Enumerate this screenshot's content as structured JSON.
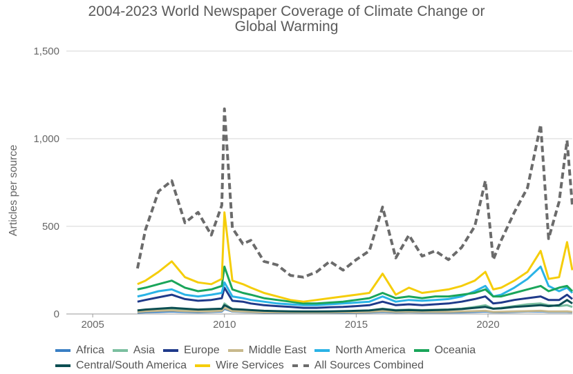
{
  "chart_data": {
    "type": "line",
    "title_lines": [
      "2004-2023 World Newspaper Coverage of Climate Change or",
      "Global Warming"
    ],
    "xlabel": "",
    "ylabel": "Articles per source",
    "xlim": [
      2004,
      2023.2
    ],
    "ylim": [
      0,
      1500
    ],
    "x_ticks": [
      {
        "value": 2005,
        "label": "2005"
      },
      {
        "value": 2010,
        "label": "2010"
      },
      {
        "value": 2015,
        "label": "2015"
      },
      {
        "value": 2020,
        "label": "2020"
      }
    ],
    "y_ticks": [
      {
        "value": 0,
        "label": "0"
      },
      {
        "value": 500,
        "label": "500"
      },
      {
        "value": 1000,
        "label": "1,000"
      },
      {
        "value": 1500,
        "label": "1,500"
      }
    ],
    "grid": "horizontal",
    "legend_position": "bottom",
    "x": [
      2006.7,
      2007.0,
      2007.5,
      2008.0,
      2008.5,
      2009.0,
      2009.5,
      2009.9,
      2010.0,
      2010.3,
      2010.7,
      2011.0,
      2011.5,
      2012.0,
      2012.5,
      2013.0,
      2013.5,
      2014.0,
      2014.5,
      2015.0,
      2015.5,
      2016.0,
      2016.5,
      2017.0,
      2017.5,
      2018.0,
      2018.5,
      2019.0,
      2019.5,
      2019.9,
      2020.2,
      2020.5,
      2021.0,
      2021.5,
      2022.0,
      2022.3,
      2022.7,
      2023.0,
      2023.2
    ],
    "series": [
      {
        "name": "Africa",
        "color": "#3a7fc4",
        "dashed": false,
        "values": [
          8,
          10,
          12,
          14,
          12,
          10,
          12,
          14,
          30,
          14,
          12,
          10,
          8,
          8,
          7,
          6,
          6,
          7,
          7,
          8,
          9,
          12,
          9,
          10,
          9,
          9,
          9,
          10,
          12,
          14,
          10,
          10,
          12,
          14,
          15,
          12,
          12,
          12,
          10
        ]
      },
      {
        "name": "Asia",
        "color": "#7bbfa0",
        "dashed": false,
        "values": [
          15,
          18,
          22,
          25,
          20,
          18,
          20,
          25,
          60,
          25,
          20,
          18,
          15,
          14,
          12,
          10,
          10,
          12,
          14,
          16,
          20,
          30,
          22,
          25,
          22,
          24,
          26,
          30,
          40,
          50,
          30,
          35,
          45,
          55,
          60,
          50,
          45,
          50,
          40
        ]
      },
      {
        "name": "Europe",
        "color": "#1f3a8a",
        "dashed": false,
        "values": [
          70,
          80,
          95,
          110,
          85,
          75,
          80,
          90,
          150,
          75,
          70,
          60,
          50,
          45,
          40,
          35,
          35,
          38,
          40,
          45,
          50,
          70,
          50,
          55,
          50,
          55,
          60,
          70,
          85,
          100,
          60,
          65,
          80,
          90,
          100,
          80,
          80,
          110,
          85
        ]
      },
      {
        "name": "Middle East",
        "color": "#c8b98c",
        "dashed": false,
        "values": [
          12,
          15,
          18,
          20,
          16,
          14,
          15,
          18,
          35,
          16,
          14,
          12,
          10,
          10,
          9,
          8,
          8,
          9,
          10,
          10,
          12,
          16,
          12,
          13,
          12,
          12,
          12,
          14,
          16,
          18,
          12,
          13,
          15,
          16,
          18,
          14,
          14,
          15,
          12
        ]
      },
      {
        "name": "North America",
        "color": "#2ab3e6",
        "dashed": false,
        "values": [
          100,
          110,
          130,
          140,
          110,
          100,
          110,
          120,
          180,
          100,
          90,
          80,
          70,
          60,
          55,
          50,
          50,
          55,
          60,
          65,
          70,
          100,
          70,
          80,
          75,
          80,
          85,
          100,
          130,
          160,
          100,
          110,
          150,
          200,
          270,
          160,
          130,
          150,
          120
        ]
      },
      {
        "name": "Oceania",
        "color": "#1aa55a",
        "dashed": false,
        "values": [
          140,
          150,
          170,
          190,
          150,
          130,
          140,
          160,
          270,
          140,
          120,
          110,
          90,
          80,
          70,
          60,
          60,
          65,
          70,
          80,
          90,
          120,
          90,
          100,
          90,
          100,
          100,
          110,
          120,
          140,
          100,
          100,
          120,
          140,
          160,
          130,
          150,
          160,
          130
        ]
      },
      {
        "name": "Central/South America",
        "color": "#0c4e52",
        "dashed": false,
        "values": [
          20,
          25,
          30,
          35,
          30,
          25,
          28,
          30,
          50,
          28,
          25,
          22,
          18,
          16,
          15,
          14,
          14,
          15,
          16,
          18,
          20,
          28,
          20,
          22,
          20,
          22,
          24,
          28,
          35,
          40,
          30,
          32,
          40,
          45,
          50,
          45,
          50,
          80,
          60
        ]
      },
      {
        "name": "Wire Services",
        "color": "#f5cd0a",
        "dashed": false,
        "values": [
          170,
          190,
          240,
          300,
          210,
          180,
          170,
          200,
          580,
          190,
          170,
          150,
          120,
          100,
          80,
          70,
          80,
          90,
          100,
          110,
          120,
          230,
          110,
          150,
          120,
          130,
          140,
          160,
          190,
          240,
          140,
          150,
          190,
          240,
          360,
          200,
          210,
          410,
          250
        ]
      },
      {
        "name": "All Sources Combined",
        "color": "#6b6b6b",
        "dashed": true,
        "values": [
          260,
          480,
          700,
          760,
          520,
          580,
          450,
          620,
          1170,
          490,
          400,
          420,
          300,
          280,
          220,
          210,
          240,
          300,
          250,
          310,
          360,
          610,
          320,
          450,
          330,
          360,
          310,
          380,
          500,
          760,
          310,
          420,
          580,
          720,
          1080,
          430,
          640,
          990,
          620
        ]
      }
    ]
  }
}
